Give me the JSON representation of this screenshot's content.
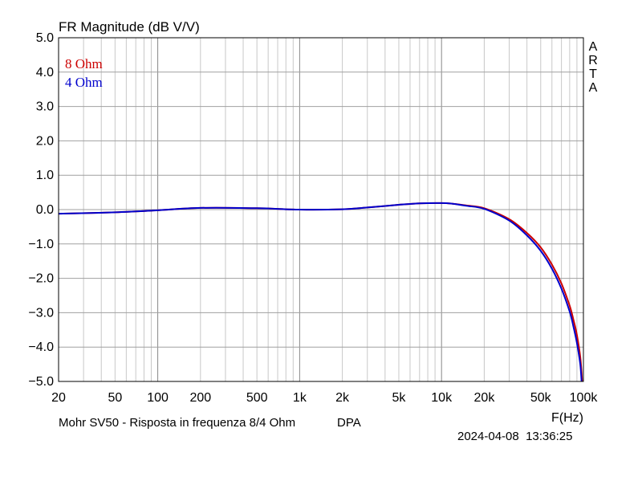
{
  "chart_data": {
    "type": "line",
    "title": "FR Magnitude (dB V/V)",
    "xlabel": "F(Hz)",
    "ylabel": "",
    "x_scale": "log",
    "xlim": [
      20,
      100000
    ],
    "ylim": [
      -5.0,
      5.0
    ],
    "grid": true,
    "y_ticks": [
      "5.0",
      "4.0",
      "3.0",
      "2.0",
      "1.0",
      "0.0",
      "-1.0",
      "-2.0",
      "-3.0",
      "-4.0",
      "-5.0"
    ],
    "x_ticks": [
      {
        "value": 20,
        "label": "20"
      },
      {
        "value": 50,
        "label": "50"
      },
      {
        "value": 100,
        "label": "100"
      },
      {
        "value": 200,
        "label": "200"
      },
      {
        "value": 500,
        "label": "500"
      },
      {
        "value": 1000,
        "label": "1k"
      },
      {
        "value": 2000,
        "label": "2k"
      },
      {
        "value": 5000,
        "label": "5k"
      },
      {
        "value": 10000,
        "label": "10k"
      },
      {
        "value": 20000,
        "label": "20k"
      },
      {
        "value": 50000,
        "label": "50k"
      },
      {
        "value": 100000,
        "label": "100k"
      }
    ],
    "legend_position": "top-left",
    "series": [
      {
        "name": "8 Ohm",
        "color": "#cc0000",
        "x": [
          20,
          50,
          100,
          200,
          500,
          1000,
          2000,
          3000,
          5000,
          7000,
          10000,
          12000,
          15000,
          20000,
          30000,
          40000,
          50000,
          60000,
          70000,
          80000,
          85000,
          90000,
          95000,
          98000
        ],
        "y": [
          -0.12,
          -0.08,
          -0.02,
          0.05,
          0.04,
          0.0,
          0.01,
          0.06,
          0.14,
          0.18,
          0.19,
          0.17,
          0.12,
          0.04,
          -0.28,
          -0.68,
          -1.1,
          -1.6,
          -2.15,
          -2.8,
          -3.2,
          -3.65,
          -4.3,
          -5.0
        ]
      },
      {
        "name": "4 Ohm",
        "color": "#0000cc",
        "x": [
          20,
          50,
          100,
          200,
          500,
          1000,
          2000,
          3000,
          5000,
          7000,
          10000,
          12000,
          15000,
          20000,
          30000,
          40000,
          50000,
          60000,
          70000,
          80000,
          85000,
          90000,
          95000,
          97000
        ],
        "y": [
          -0.12,
          -0.08,
          -0.02,
          0.05,
          0.04,
          0.0,
          0.01,
          0.06,
          0.14,
          0.18,
          0.19,
          0.17,
          0.11,
          0.02,
          -0.32,
          -0.75,
          -1.2,
          -1.72,
          -2.3,
          -2.97,
          -3.4,
          -3.88,
          -4.5,
          -5.0
        ]
      }
    ]
  },
  "watermark": [
    "A",
    "R",
    "T",
    "A"
  ],
  "caption": {
    "description": "Mohr SV50 - Risposta in frequenza 8/4 Ohm",
    "mode": "DPA",
    "timestamp": "2024-04-08  13:36:25"
  }
}
